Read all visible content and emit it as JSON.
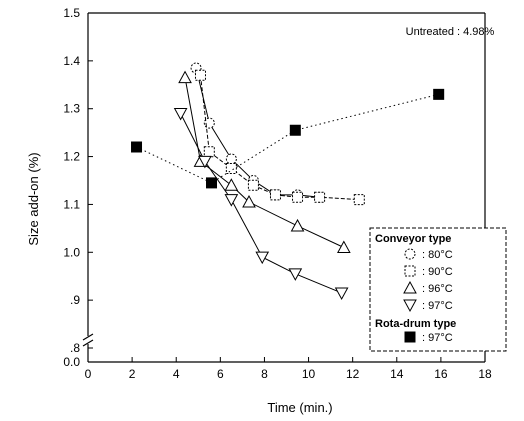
{
  "chart_data": {
    "type": "scatter",
    "xlabel": "Time (min.)",
    "ylabel": "Size add-on (%)",
    "xlim": [
      0,
      18
    ],
    "ylim": [
      0.8,
      1.5
    ],
    "x_ticks": [
      "0",
      "2",
      "4",
      "6",
      "8",
      "10",
      "12",
      "14",
      "16",
      "18"
    ],
    "y_ticks": [
      ".8",
      ".9",
      "1.0",
      "1.1",
      "1.2",
      "1.3",
      "1.4",
      "1.5"
    ],
    "y_tick_values": [
      0.8,
      0.9,
      1.0,
      1.1,
      1.2,
      1.3,
      1.4,
      1.5
    ],
    "y_broken_label": "0.0",
    "annotation": "Untreated : 4.98%",
    "legend_position": "bottom-right",
    "legend": {
      "group1_title": "Conveyor type",
      "group2_title": "Rota-drum type"
    },
    "series": [
      {
        "name": "80°C",
        "group": "Conveyor type",
        "marker": "circle",
        "line": "solid",
        "x": [
          4.9,
          5.5,
          6.5,
          7.5,
          8.5,
          9.5,
          10.5
        ],
        "y": [
          1.385,
          1.27,
          1.195,
          1.15,
          1.12,
          1.12,
          1.115
        ]
      },
      {
        "name": "90°C",
        "group": "Conveyor type",
        "marker": "square",
        "line": "dashed",
        "x": [
          5.1,
          5.5,
          6.5,
          7.5,
          8.5,
          9.5,
          10.5,
          12.3
        ],
        "y": [
          1.37,
          1.21,
          1.175,
          1.14,
          1.12,
          1.115,
          1.115,
          1.11
        ]
      },
      {
        "name": "96°C",
        "group": "Conveyor type",
        "marker": "triangle-up",
        "line": "solid",
        "x": [
          4.4,
          5.1,
          6.5,
          7.3,
          9.5,
          11.6
        ],
        "y": [
          1.365,
          1.19,
          1.14,
          1.105,
          1.055,
          1.01
        ]
      },
      {
        "name": "97°C",
        "group": "Conveyor type",
        "marker": "triangle-down",
        "line": "solid",
        "x": [
          4.2,
          5.3,
          6.5,
          7.9,
          9.4,
          11.5
        ],
        "y": [
          1.29,
          1.19,
          1.11,
          0.99,
          0.955,
          0.915
        ]
      },
      {
        "name": "97°C",
        "group": "Rota-drum type",
        "marker": "filled-square",
        "line": "dotted",
        "x": [
          2.2,
          5.6,
          9.4,
          15.9
        ],
        "y": [
          1.22,
          1.145,
          1.255,
          1.33
        ]
      }
    ]
  }
}
